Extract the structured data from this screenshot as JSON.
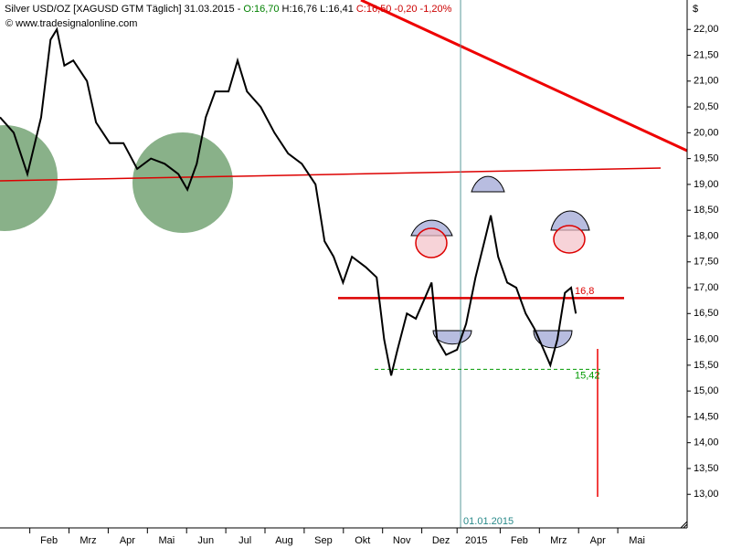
{
  "chart_data": {
    "type": "line",
    "title_parts": [
      "Silver USD/OZ [XAGUSD GTM  Täglich] 31.03.2015 -",
      "O:16,70",
      "H:16,76 L:16,41",
      "C:16,50 -0,20 -1,20%"
    ],
    "title_colors": [
      "#000000",
      "#008000",
      "#000000",
      "#cc0000"
    ],
    "copyright": "© www.tradesignalonline.com",
    "y_unit": "$",
    "xlim": [
      -0.75,
      16.78
    ],
    "ylim": [
      12.35,
      22.57
    ],
    "xticks": [
      {
        "value": 0.5,
        "label": "Feb"
      },
      {
        "value": 1.5,
        "label": "Mrz"
      },
      {
        "value": 2.5,
        "label": "Apr"
      },
      {
        "value": 3.5,
        "label": "Mai"
      },
      {
        "value": 4.5,
        "label": "Jun"
      },
      {
        "value": 5.5,
        "label": "Jul"
      },
      {
        "value": 6.5,
        "label": "Aug"
      },
      {
        "value": 7.5,
        "label": "Sep"
      },
      {
        "value": 8.5,
        "label": "Okt"
      },
      {
        "value": 9.5,
        "label": "Nov"
      },
      {
        "value": 10.5,
        "label": "Dez"
      },
      {
        "value": 11.4,
        "label": "2015"
      },
      {
        "value": 12.5,
        "label": "Feb"
      },
      {
        "value": 13.5,
        "label": "Mrz"
      },
      {
        "value": 14.5,
        "label": "Apr"
      },
      {
        "value": 15.5,
        "label": "Mai"
      }
    ],
    "yticks": [
      {
        "value": 13,
        "label": "13,00"
      },
      {
        "value": 13.5,
        "label": "13,50"
      },
      {
        "value": 14,
        "label": "14,00"
      },
      {
        "value": 14.5,
        "label": "14,50"
      },
      {
        "value": 15,
        "label": "15,00"
      },
      {
        "value": 15.5,
        "label": "15,50"
      },
      {
        "value": 16,
        "label": "16,00"
      },
      {
        "value": 16.5,
        "label": "16,50"
      },
      {
        "value": 17,
        "label": "17,00"
      },
      {
        "value": 17.5,
        "label": "17,50"
      },
      {
        "value": 18,
        "label": "18,00"
      },
      {
        "value": 18.5,
        "label": "18,50"
      },
      {
        "value": 19,
        "label": "19,00"
      },
      {
        "value": 19.5,
        "label": "19,50"
      },
      {
        "value": 20,
        "label": "20,00"
      },
      {
        "value": 20.5,
        "label": "20,50"
      },
      {
        "value": 21,
        "label": "21,00"
      },
      {
        "value": 21.5,
        "label": "21,50"
      },
      {
        "value": 22,
        "label": "22,00"
      }
    ],
    "series": [
      {
        "name": "Silver USD/OZ",
        "color": "#000000",
        "x": [
          -0.75,
          -0.4,
          -0.05,
          0.3,
          0.54,
          0.7,
          0.89,
          1.12,
          1.47,
          1.7,
          2.05,
          2.4,
          2.75,
          3.1,
          3.45,
          3.8,
          4.03,
          4.27,
          4.5,
          4.74,
          5.08,
          5.31,
          5.55,
          5.9,
          6.25,
          6.6,
          6.95,
          7.3,
          7.53,
          7.76,
          8.0,
          8.23,
          8.58,
          8.86,
          9.05,
          9.23,
          9.39,
          9.63,
          9.86,
          10.09,
          10.26,
          10.4,
          10.63,
          10.91,
          11.14,
          11.38,
          11.61,
          11.77,
          11.96,
          12.19,
          12.42,
          12.66,
          12.89,
          13.12,
          13.29,
          13.47,
          13.66,
          13.82,
          13.94
        ],
        "values": [
          20.3,
          20.0,
          19.2,
          20.3,
          21.8,
          22.0,
          21.3,
          21.4,
          21.0,
          20.2,
          19.8,
          19.8,
          19.3,
          19.5,
          19.4,
          19.2,
          18.9,
          19.4,
          20.3,
          20.8,
          20.8,
          21.4,
          20.8,
          20.5,
          20.0,
          19.6,
          19.4,
          19.0,
          17.9,
          17.6,
          17.1,
          17.6,
          17.4,
          17.2,
          16.0,
          15.3,
          15.8,
          16.5,
          16.4,
          16.8,
          17.1,
          16.0,
          15.7,
          15.8,
          16.3,
          17.2,
          17.9,
          18.4,
          17.6,
          17.1,
          17.0,
          16.5,
          16.2,
          15.8,
          15.5,
          16.0,
          16.9,
          17.0,
          16.5
        ]
      }
    ],
    "levels": [
      {
        "value": 16.8,
        "label": "16,8",
        "color": "#dd0000",
        "style": "solid"
      },
      {
        "value": 15.42,
        "label": "15,42",
        "color": "#009900",
        "style": "dashed"
      }
    ],
    "date_marker": {
      "value": 11,
      "label": "01.01.2015"
    }
  }
}
